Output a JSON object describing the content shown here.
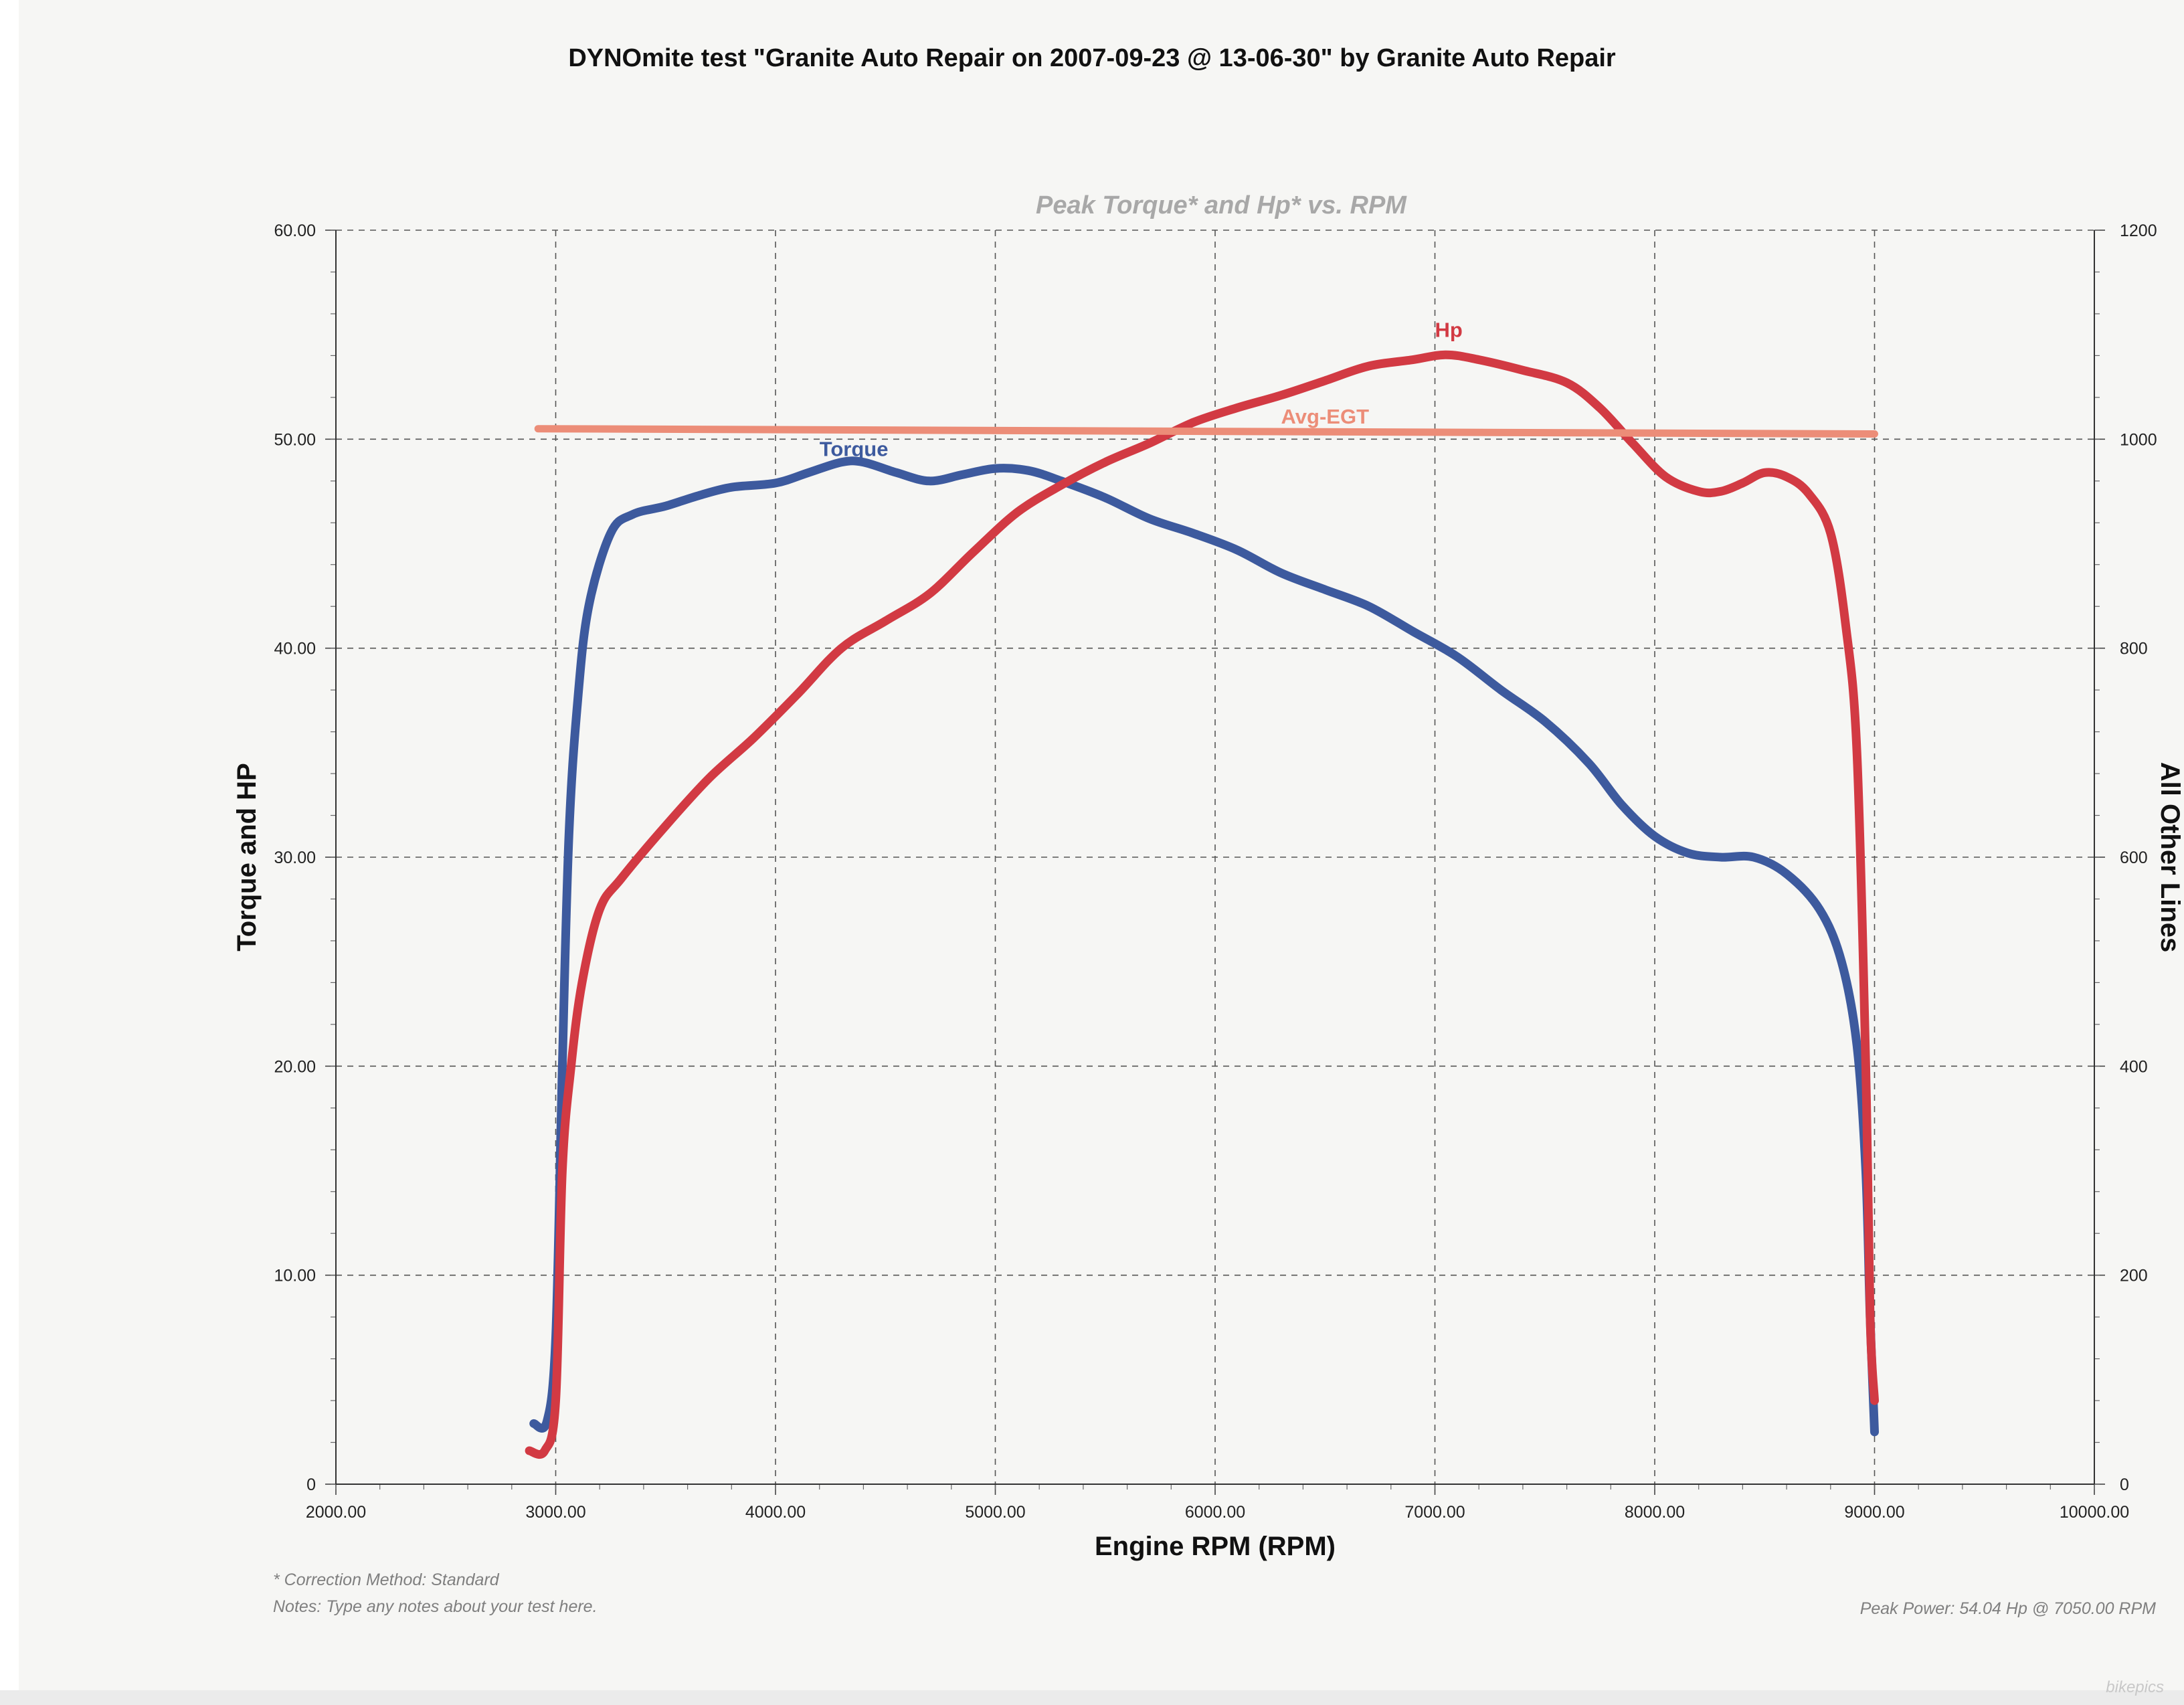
{
  "header": {
    "title": "DYNOmite test \"Granite Auto Repair on 2007-09-23 @ 13-06-30\" by Granite Auto Repair"
  },
  "footer": {
    "correction": "* Correction Method: Standard",
    "notes": "Notes: Type any notes about your test here.",
    "peak_power": "Peak Power: 54.04 Hp @ 7050.00 RPM",
    "watermark": "bikepics"
  },
  "chart_data": {
    "type": "line",
    "title": "Peak Torque* and Hp* vs. RPM",
    "xlabel": "Engine RPM (RPM)",
    "ylabel": "Torque and HP",
    "y2label": "All Other Lines",
    "xlim": [
      2000,
      10000
    ],
    "ylim": [
      0,
      60
    ],
    "y2lim": [
      0,
      1200
    ],
    "grid": true,
    "x_ticks": [
      "2000.00",
      "3000.00",
      "4000.00",
      "5000.00",
      "6000.00",
      "7000.00",
      "8000.00",
      "9000.00",
      "10000.00"
    ],
    "y_ticks": [
      "0",
      "10.00",
      "20.00",
      "30.00",
      "40.00",
      "50.00",
      "60.00"
    ],
    "y2_ticks": [
      "0",
      "200",
      "400",
      "600",
      "800",
      "1000",
      "1200"
    ],
    "series": [
      {
        "name": "Torque",
        "axis": "left",
        "color": "#3d5a9e",
        "points": [
          [
            2900,
            2.9
          ],
          [
            2960,
            3.0
          ],
          [
            3000,
            7
          ],
          [
            3030,
            20
          ],
          [
            3060,
            31
          ],
          [
            3100,
            37.5
          ],
          [
            3150,
            42
          ],
          [
            3250,
            45.5
          ],
          [
            3350,
            46.4
          ],
          [
            3500,
            46.8
          ],
          [
            3650,
            47.3
          ],
          [
            3800,
            47.7
          ],
          [
            4000,
            47.9
          ],
          [
            4150,
            48.4
          ],
          [
            4300,
            48.9
          ],
          [
            4400,
            48.9
          ],
          [
            4550,
            48.4
          ],
          [
            4700,
            48.0
          ],
          [
            4850,
            48.3
          ],
          [
            5000,
            48.6
          ],
          [
            5150,
            48.5
          ],
          [
            5300,
            48.0
          ],
          [
            5500,
            47.2
          ],
          [
            5700,
            46.2
          ],
          [
            5900,
            45.5
          ],
          [
            6100,
            44.7
          ],
          [
            6300,
            43.6
          ],
          [
            6500,
            42.8
          ],
          [
            6700,
            42.0
          ],
          [
            6900,
            40.8
          ],
          [
            7100,
            39.6
          ],
          [
            7300,
            38.0
          ],
          [
            7500,
            36.5
          ],
          [
            7700,
            34.5
          ],
          [
            7850,
            32.5
          ],
          [
            8000,
            31.0
          ],
          [
            8150,
            30.2
          ],
          [
            8300,
            30.0
          ],
          [
            8450,
            30.0
          ],
          [
            8600,
            29.2
          ],
          [
            8750,
            27.5
          ],
          [
            8850,
            25.0
          ],
          [
            8920,
            21.0
          ],
          [
            8960,
            15
          ],
          [
            8980,
            8
          ],
          [
            9000,
            2.5
          ]
        ]
      },
      {
        "name": "Hp",
        "axis": "left",
        "color": "#d23a43",
        "points": [
          [
            2880,
            1.6
          ],
          [
            2950,
            1.6
          ],
          [
            3000,
            4
          ],
          [
            3030,
            15
          ],
          [
            3070,
            20
          ],
          [
            3120,
            24
          ],
          [
            3200,
            27.5
          ],
          [
            3300,
            29.0
          ],
          [
            3500,
            31.5
          ],
          [
            3700,
            33.8
          ],
          [
            3900,
            35.7
          ],
          [
            4100,
            37.8
          ],
          [
            4300,
            40.0
          ],
          [
            4500,
            41.3
          ],
          [
            4700,
            42.6
          ],
          [
            4900,
            44.6
          ],
          [
            5100,
            46.5
          ],
          [
            5300,
            47.8
          ],
          [
            5500,
            48.9
          ],
          [
            5700,
            49.8
          ],
          [
            5900,
            50.8
          ],
          [
            6100,
            51.5
          ],
          [
            6300,
            52.1
          ],
          [
            6500,
            52.8
          ],
          [
            6700,
            53.5
          ],
          [
            6900,
            53.8
          ],
          [
            7050,
            54.04
          ],
          [
            7200,
            53.8
          ],
          [
            7400,
            53.3
          ],
          [
            7600,
            52.7
          ],
          [
            7750,
            51.5
          ],
          [
            7900,
            49.8
          ],
          [
            8050,
            48.2
          ],
          [
            8200,
            47.5
          ],
          [
            8300,
            47.5
          ],
          [
            8400,
            47.9
          ],
          [
            8500,
            48.4
          ],
          [
            8600,
            48.2
          ],
          [
            8700,
            47.4
          ],
          [
            8800,
            45.5
          ],
          [
            8870,
            41
          ],
          [
            8920,
            35
          ],
          [
            8960,
            20
          ],
          [
            8980,
            8
          ],
          [
            9000,
            4
          ]
        ]
      },
      {
        "name": "Avg-EGT",
        "axis": "right",
        "color": "#ec8d78",
        "points": [
          [
            2920,
            1010
          ],
          [
            9000,
            1005
          ]
        ]
      }
    ],
    "annotations": [
      {
        "text": "Torque",
        "series": "Torque",
        "x": 4200,
        "y": 49.2
      },
      {
        "text": "Hp",
        "series": "Hp",
        "x": 7000,
        "y": 54.9
      },
      {
        "text": "Avg-EGT",
        "series": "Avg-EGT",
        "x": 6300,
        "y": 1015
      }
    ]
  }
}
